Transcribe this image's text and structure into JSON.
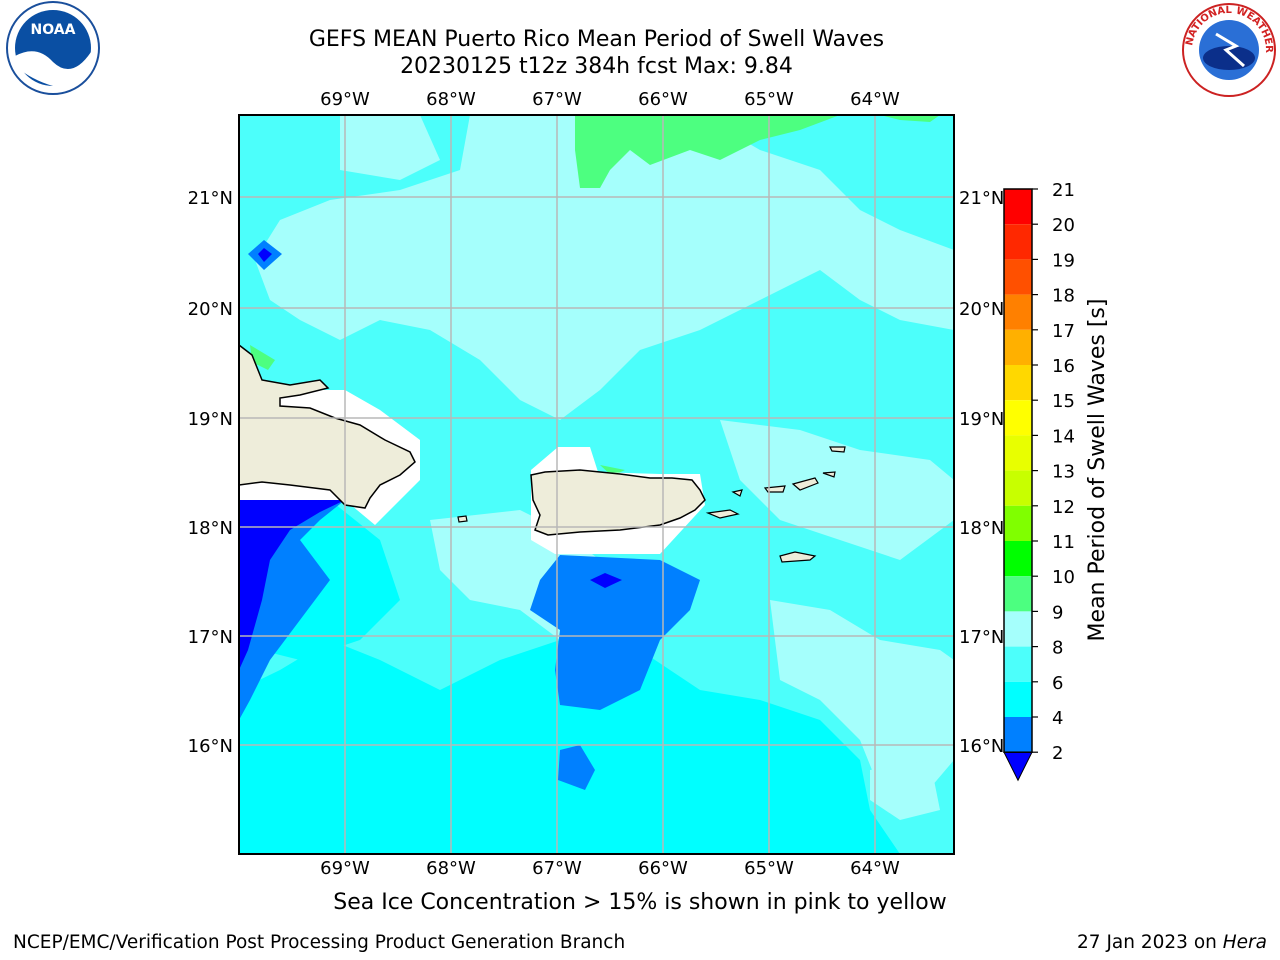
{
  "header": {
    "title_line1": "GEFS MEAN Puerto Rico Mean Period of Swell Waves",
    "title_line2": "20230125 t12z 384h fcst   Max: 9.84"
  },
  "logos": {
    "left": {
      "text": "NOAA",
      "icon": "noaa-logo"
    },
    "right": {
      "text": "NATIONAL WEATHER SERVICE",
      "icon": "nws-logo"
    }
  },
  "map": {
    "lon_labels": [
      "69°W",
      "68°W",
      "67°W",
      "66°W",
      "65°W",
      "64°W"
    ],
    "lat_labels": [
      "21°N",
      "20°N",
      "19°N",
      "18°N",
      "17°N",
      "16°N"
    ],
    "colors": {
      "ocean_light": "#a5fffc",
      "ocean_mid": "#4cfffb",
      "ocean_cyan": "#00ffff",
      "ocean_blue": "#0080ff",
      "ocean_deep": "#0000ff",
      "green": "#4dff80",
      "land": "#eeedda",
      "grid": "#b8b8b8"
    }
  },
  "colorbar": {
    "label": "Mean Period of Swell Waves [s]",
    "ticks": [
      "21",
      "20",
      "19",
      "18",
      "17",
      "16",
      "15",
      "14",
      "13",
      "12",
      "11",
      "10",
      "9",
      "8",
      "6",
      "4",
      "2"
    ],
    "colors": [
      "#ff0000",
      "#ff2800",
      "#ff5000",
      "#ff8000",
      "#ffb000",
      "#ffd800",
      "#ffff00",
      "#e8ff00",
      "#c8ff00",
      "#80ff00",
      "#00ff00",
      "#4cff80",
      "#a5fffc",
      "#4cfffb",
      "#00ffff",
      "#0080ff",
      "#0000ff"
    ]
  },
  "caption": "Sea Ice Concentration > 15% is shown in pink to yellow",
  "footer": {
    "left": "NCEP/EMC/Verification Post Processing Product Generation Branch",
    "right_date": "27 Jan 2023 on ",
    "right_machine": "Hera"
  }
}
